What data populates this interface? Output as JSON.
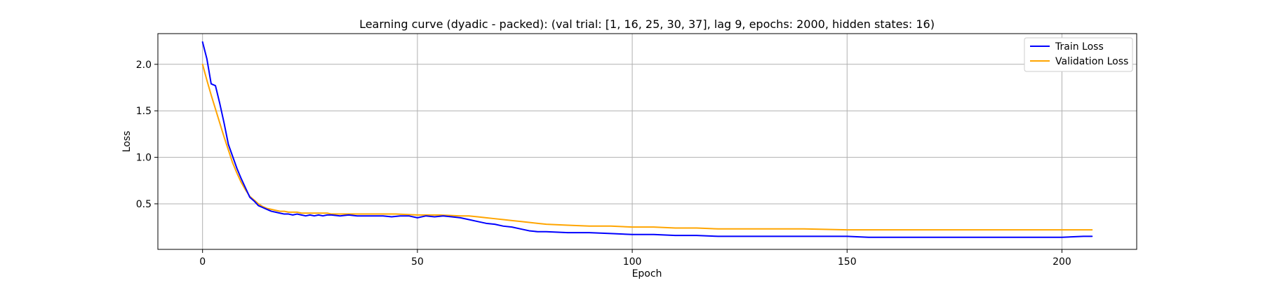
{
  "chart_data": {
    "type": "line",
    "title": "Learning curve (dyadic - packed): (val trial: [1, 16, 25, 30, 37], lag 9, epochs: 2000, hidden states: 16)",
    "xlabel": "Epoch",
    "ylabel": "Loss",
    "xlim": [
      -10.4,
      217.4
    ],
    "ylim": [
      0.01,
      2.33
    ],
    "grid": true,
    "legend_position": "top-right",
    "xticks": [
      0,
      50,
      100,
      150,
      200
    ],
    "yticks": [
      0.5,
      1.0,
      1.5,
      2.0
    ],
    "xtick_labels": [
      "0",
      "50",
      "100",
      "150",
      "200"
    ],
    "ytick_labels": [
      "0.5",
      "1.0",
      "1.5",
      "2.0"
    ],
    "series": [
      {
        "name": "Train Loss",
        "color": "#0000ff",
        "x": [
          0,
          1,
          2,
          3,
          4,
          5,
          6,
          7,
          8,
          9,
          10,
          11,
          12,
          13,
          14,
          15,
          16,
          17,
          18,
          19,
          20,
          21,
          22,
          23,
          24,
          25,
          26,
          27,
          28,
          29,
          30,
          32,
          34,
          36,
          38,
          40,
          42,
          44,
          46,
          48,
          50,
          52,
          54,
          56,
          58,
          60,
          62,
          64,
          66,
          68,
          70,
          72,
          74,
          76,
          78,
          80,
          85,
          90,
          95,
          100,
          105,
          110,
          115,
          120,
          125,
          130,
          135,
          140,
          145,
          150,
          155,
          160,
          165,
          170,
          175,
          180,
          185,
          190,
          195,
          200,
          205,
          207
        ],
        "values": [
          2.24,
          2.06,
          1.79,
          1.77,
          1.58,
          1.37,
          1.14,
          1.01,
          0.88,
          0.77,
          0.67,
          0.57,
          0.53,
          0.48,
          0.46,
          0.44,
          0.42,
          0.41,
          0.4,
          0.39,
          0.39,
          0.38,
          0.39,
          0.38,
          0.37,
          0.38,
          0.37,
          0.38,
          0.37,
          0.38,
          0.38,
          0.37,
          0.38,
          0.37,
          0.37,
          0.37,
          0.37,
          0.36,
          0.37,
          0.37,
          0.35,
          0.37,
          0.36,
          0.37,
          0.36,
          0.35,
          0.33,
          0.31,
          0.29,
          0.28,
          0.26,
          0.25,
          0.23,
          0.21,
          0.2,
          0.2,
          0.19,
          0.19,
          0.18,
          0.17,
          0.17,
          0.16,
          0.16,
          0.15,
          0.15,
          0.15,
          0.15,
          0.15,
          0.15,
          0.15,
          0.14,
          0.14,
          0.14,
          0.14,
          0.14,
          0.14,
          0.14,
          0.14,
          0.14,
          0.14,
          0.15,
          0.15
        ]
      },
      {
        "name": "Validation Loss",
        "color": "#ffa500",
        "x": [
          0,
          1,
          2,
          3,
          4,
          5,
          6,
          7,
          8,
          9,
          10,
          11,
          12,
          13,
          14,
          15,
          16,
          17,
          18,
          19,
          20,
          21,
          22,
          23,
          24,
          25,
          26,
          27,
          28,
          29,
          30,
          35,
          40,
          45,
          50,
          55,
          60,
          62,
          64,
          66,
          68,
          70,
          72,
          74,
          76,
          78,
          80,
          85,
          90,
          95,
          100,
          105,
          110,
          115,
          120,
          130,
          140,
          150,
          160,
          170,
          180,
          190,
          200,
          207
        ],
        "values": [
          2.0,
          1.83,
          1.67,
          1.52,
          1.37,
          1.22,
          1.08,
          0.94,
          0.83,
          0.73,
          0.65,
          0.58,
          0.54,
          0.5,
          0.47,
          0.45,
          0.44,
          0.43,
          0.42,
          0.42,
          0.41,
          0.41,
          0.41,
          0.4,
          0.4,
          0.4,
          0.4,
          0.4,
          0.4,
          0.4,
          0.39,
          0.39,
          0.39,
          0.39,
          0.38,
          0.38,
          0.37,
          0.37,
          0.36,
          0.35,
          0.34,
          0.33,
          0.32,
          0.31,
          0.3,
          0.29,
          0.28,
          0.27,
          0.26,
          0.26,
          0.25,
          0.25,
          0.24,
          0.24,
          0.23,
          0.23,
          0.23,
          0.22,
          0.22,
          0.22,
          0.22,
          0.22,
          0.22,
          0.22
        ]
      }
    ]
  },
  "colors": {
    "axes_edge": "#000000",
    "grid": "#b0b0b0",
    "legend_edge": "#cccccc",
    "background": "#ffffff"
  }
}
